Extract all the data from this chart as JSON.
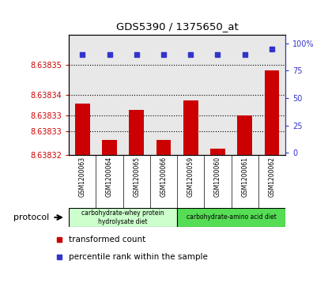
{
  "title": "GDS5390 / 1375650_at",
  "samples": [
    "GSM1200063",
    "GSM1200064",
    "GSM1200065",
    "GSM1200066",
    "GSM1200059",
    "GSM1200060",
    "GSM1200061",
    "GSM1200062"
  ],
  "bar_values": [
    8.638337,
    8.638325,
    8.638335,
    8.638325,
    8.638338,
    8.638322,
    8.638333,
    8.638348
  ],
  "percentile_values": [
    90,
    90,
    90,
    90,
    90,
    90,
    90,
    95
  ],
  "ymin": 8.63832,
  "ymax": 8.63836,
  "bar_color": "#cc0000",
  "percentile_color": "#3333cc",
  "group1_label_line1": "carbohydrate-whey protein",
  "group1_label_line2": "hydrolysate diet",
  "group2_label": "carbohydrate-amino acid diet",
  "group1_color": "#ccffcc",
  "group2_color": "#55dd55",
  "legend_bar_label": "transformed count",
  "legend_dot_label": "percentile rank within the sample",
  "protocol_label": "protocol",
  "right_yticks": [
    0,
    25,
    50,
    75,
    100
  ],
  "right_ytick_labels": [
    "0",
    "25",
    "50",
    "75",
    "100%"
  ],
  "left_ytick_positions": [
    8.63832,
    8.638328,
    8.638333,
    8.63834,
    8.63835
  ],
  "left_ytick_labels": [
    "8.63832",
    "8.63833",
    "8.63833",
    "8.63834",
    "8.63835"
  ],
  "grid_positions": [
    8.63832,
    8.638328,
    8.638333,
    8.63834,
    8.63835
  ]
}
